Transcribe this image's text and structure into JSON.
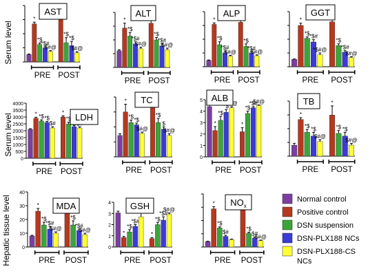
{
  "row_labels": [
    "Serum level",
    "Serum level",
    "Hepatic tissue level"
  ],
  "colors": {
    "normal": "#7b3fa0",
    "positive": "#b5391f",
    "dsn": "#3aa63a",
    "plx": "#3b3bd6",
    "cs": "#ffff33"
  },
  "legend": [
    {
      "label": "Normal control",
      "color_key": "normal"
    },
    {
      "label": "Positive control",
      "color_key": "positive"
    },
    {
      "label": "DSN suspension",
      "color_key": "dsn"
    },
    {
      "label": "DSN-PLX188 NCs",
      "color_key": "plx"
    },
    {
      "label": "DSN-PLX188-CS",
      "label2": "NCs",
      "color_key": "cs"
    }
  ],
  "chart_data": [
    {
      "type": "bar",
      "title": "AST",
      "group_labels": [
        "PRE",
        "POST"
      ],
      "ylim": [
        0,
        200
      ],
      "yticks": [],
      "values": [
        26,
        135,
        62,
        50,
        37,
        158,
        68,
        58,
        32
      ],
      "errors": [
        2,
        6,
        5,
        4,
        3,
        22,
        18,
        15,
        4
      ],
      "sig": [
        "",
        "*",
        "*$",
        "*$#",
        "$#@",
        "*",
        "*$",
        "*$",
        "$#@"
      ]
    },
    {
      "type": "bar",
      "title": "ALT",
      "group_labels": [
        "PRE",
        "POST"
      ],
      "ylim": [
        0,
        280
      ],
      "yticks": [],
      "values": [
        85,
        200,
        160,
        120,
        95,
        225,
        140,
        110,
        90
      ],
      "errors": [
        5,
        25,
        18,
        10,
        8,
        25,
        12,
        10,
        8
      ],
      "sig": [
        "",
        "*",
        "*$",
        "*$#",
        "$#@",
        "*",
        "*$",
        "*$#",
        "$#@"
      ]
    },
    {
      "type": "bar",
      "title": "ALP",
      "group_labels": [
        "PRE",
        "POST"
      ],
      "ylim": [
        0,
        1300
      ],
      "yticks": [],
      "values": [
        150,
        1000,
        520,
        330,
        250,
        1050,
        480,
        330,
        260
      ],
      "errors": [
        10,
        35,
        70,
        40,
        20,
        60,
        60,
        30,
        20
      ],
      "sig": [
        "",
        "*",
        "*$",
        "*$#",
        "$#@",
        "*",
        "*$",
        "*$#",
        "$#@"
      ]
    },
    {
      "type": "bar",
      "title": "GGT",
      "group_labels": [
        "PRE",
        "POST"
      ],
      "ylim": [
        0,
        6
      ],
      "yticks": [],
      "values": [
        0.8,
        4.5,
        3.1,
        2.7,
        1.3,
        4.9,
        2.3,
        1.6,
        1.0
      ],
      "errors": [
        0.05,
        0.25,
        0.15,
        0.25,
        0.2,
        0.2,
        0.2,
        0.15,
        0.1
      ],
      "sig": [
        "",
        "*",
        "*$",
        "*$#",
        "*$#@",
        "*",
        "*$",
        "*$#",
        "$#@"
      ]
    },
    {
      "type": "bar",
      "title": "LDH",
      "group_labels": [
        "PRE",
        "POST"
      ],
      "ylim": [
        0,
        4000
      ],
      "yticks": [
        "0",
        "500",
        "1000",
        "1500",
        "2000",
        "2500",
        "3000",
        "3500",
        "4000"
      ],
      "values": [
        2100,
        2900,
        2700,
        2600,
        2200,
        3000,
        2500,
        2300,
        2200
      ],
      "errors": [
        50,
        80,
        90,
        80,
        90,
        80,
        120,
        90,
        80
      ],
      "sig": [
        "",
        "*",
        "*$",
        "*$",
        "$#",
        "*",
        "*$",
        "$",
        "$#"
      ]
    },
    {
      "type": "bar",
      "title": "TC",
      "group_labels": [
        "PRE",
        "POST"
      ],
      "ylim": [
        0,
        140
      ],
      "yticks": [],
      "values": [
        50,
        105,
        80,
        75,
        55,
        125,
        80,
        65,
        50
      ],
      "errors": [
        4,
        18,
        6,
        4,
        3,
        15,
        10,
        5,
        4
      ],
      "sig": [
        "",
        "*",
        "*$",
        "*$",
        "$#@",
        "*",
        "*$",
        "$",
        "$#@"
      ]
    },
    {
      "type": "bar",
      "title": "ALB",
      "group_labels": [
        "PRE",
        "POST"
      ],
      "ylim": [
        0,
        5
      ],
      "yticks": [
        "0",
        "1",
        "2",
        "3",
        "4",
        "5"
      ],
      "values": [
        4.4,
        2.3,
        3.2,
        3.9,
        4.3,
        2.2,
        3.8,
        4.3,
        4.5
      ],
      "errors": [
        0.15,
        0.35,
        0.35,
        0.25,
        0.1,
        0.35,
        0.2,
        0.1,
        0.05
      ],
      "sig": [
        "",
        "*",
        "*$",
        "*$",
        "$#@",
        "*",
        "*$",
        "*$#",
        "$#@"
      ]
    },
    {
      "type": "bar",
      "title": "TB",
      "group_labels": [
        "PRE",
        "POST"
      ],
      "ylim": [
        0,
        1.5
      ],
      "yticks": [],
      "values": [
        0.3,
        1.0,
        0.65,
        0.55,
        0.4,
        1.12,
        0.62,
        0.55,
        0.3
      ],
      "errors": [
        0.05,
        0.05,
        0.08,
        0.1,
        0.05,
        0.25,
        0.08,
        0.1,
        0.05
      ],
      "sig": [
        "",
        "*",
        "*$",
        "*$",
        "$#@",
        "*",
        "*$",
        "*$",
        "$#@"
      ]
    },
    {
      "type": "bar",
      "title": "MDA",
      "group_labels": [
        "PRE",
        "POST"
      ],
      "ylim": [
        0,
        40
      ],
      "yticks": [
        "0",
        "10",
        "20",
        "30",
        "40"
      ],
      "values": [
        8,
        26,
        16,
        13,
        10,
        29,
        16,
        12,
        9
      ],
      "errors": [
        0.5,
        2,
        2,
        2,
        1,
        1.5,
        3,
        1,
        1
      ],
      "sig": [
        "",
        "*",
        "*$",
        "*$#",
        "$#@",
        "*",
        "*$",
        "*$#",
        "$#@"
      ]
    },
    {
      "type": "bar",
      "title": "GSH",
      "group_labels": [
        "PRE",
        "POST"
      ],
      "ylim": [
        0,
        4
      ],
      "yticks": [
        "0",
        "1",
        "2",
        "3",
        "4"
      ],
      "values": [
        3.05,
        0.85,
        1.35,
        1.85,
        2.7,
        0.75,
        2.0,
        2.4,
        2.95
      ],
      "errors": [
        0.15,
        0.1,
        0.2,
        0.15,
        0.45,
        0.1,
        0.2,
        0.3,
        0.1
      ],
      "sig": [
        "",
        "*",
        "*$",
        "*$#",
        "$#@",
        "*",
        "*$",
        "*$#",
        "$#@"
      ]
    },
    {
      "type": "bar",
      "title": "NO",
      "title_sub": "x",
      "group_labels": [
        "PRE",
        "POST"
      ],
      "ylim": [
        0,
        5
      ],
      "yticks": [],
      "values": [
        0.5,
        3.6,
        1.8,
        1.0,
        0.7,
        4.1,
        1.3,
        0.85,
        0.6
      ],
      "errors": [
        0.05,
        0.2,
        0.1,
        0.1,
        0.05,
        0.1,
        0.1,
        0.1,
        0.05
      ],
      "sig": [
        "",
        "*",
        "*$",
        "$#",
        "",
        "*",
        "*$",
        "$#",
        "$#@"
      ]
    }
  ]
}
